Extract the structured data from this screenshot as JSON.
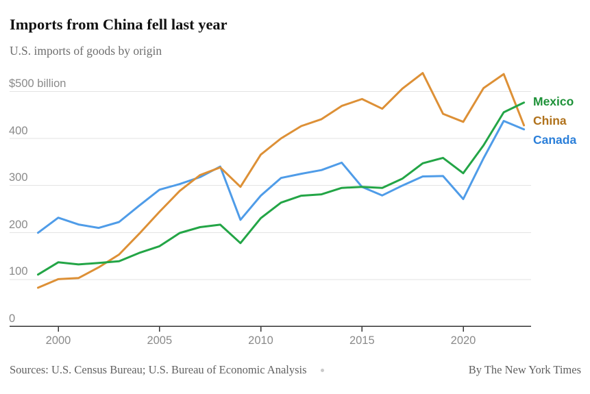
{
  "header": {
    "title": "Imports from China fell last year",
    "subtitle": "U.S. imports of goods by origin"
  },
  "chart_data": {
    "type": "line",
    "title": "Imports from China fell last year",
    "subtitle": "U.S. imports of goods by origin",
    "xlabel": "",
    "ylabel": "",
    "grid": "horizontal",
    "legend_position": "right",
    "xlim": [
      1999,
      2023
    ],
    "ylim": [
      0,
      545
    ],
    "x": [
      1999,
      2000,
      2001,
      2002,
      2003,
      2004,
      2005,
      2006,
      2007,
      2008,
      2009,
      2010,
      2011,
      2012,
      2013,
      2014,
      2015,
      2016,
      2017,
      2018,
      2019,
      2020,
      2021,
      2022,
      2023
    ],
    "series": [
      {
        "name": "Mexico",
        "line_color": "#23a546",
        "label_color": "#1d9138",
        "values": [
          109.7,
          135.9,
          131.3,
          134.6,
          138.1,
          155.9,
          170.1,
          198.3,
          210.7,
          215.9,
          176.7,
          229.7,
          262.9,
          277.6,
          280.5,
          294.2,
          296.4,
          294.2,
          314.0,
          346.5,
          358.0,
          325.4,
          384.7,
          454.9,
          475.6
        ]
      },
      {
        "name": "China",
        "line_color": "#dd9036",
        "label_color": "#b0721c",
        "values": [
          81.8,
          100.0,
          102.3,
          125.2,
          152.4,
          196.7,
          243.5,
          287.8,
          321.4,
          337.8,
          296.4,
          364.9,
          399.4,
          425.6,
          440.4,
          468.5,
          483.2,
          462.5,
          505.5,
          538.5,
          451.7,
          434.7,
          506.4,
          536.3,
          427.2
        ]
      },
      {
        "name": "Canada",
        "line_color": "#4f9ce8",
        "label_color": "#2b7fd9",
        "values": [
          198.7,
          230.8,
          216.3,
          209.1,
          221.6,
          256.4,
          290.4,
          302.4,
          317.1,
          339.5,
          226.2,
          277.6,
          315.3,
          324.2,
          332.1,
          347.8,
          296.2,
          278.1,
          299.3,
          318.5,
          319.4,
          270.4,
          357.2,
          436.6,
          418.6
        ]
      }
    ],
    "draw_order": [
      "Canada",
      "China",
      "Mexico"
    ],
    "y_ticks": [
      {
        "value": 500,
        "label": "$500 billion"
      },
      {
        "value": 400,
        "label": "400"
      },
      {
        "value": 300,
        "label": "300"
      },
      {
        "value": 200,
        "label": "200"
      },
      {
        "value": 100,
        "label": "100"
      },
      {
        "value": 0,
        "label": "0"
      }
    ],
    "x_ticks": [
      {
        "value": 2000,
        "label": "2000"
      },
      {
        "value": 2005,
        "label": "2005"
      },
      {
        "value": 2010,
        "label": "2010"
      },
      {
        "value": 2015,
        "label": "2015"
      },
      {
        "value": 2020,
        "label": "2020"
      }
    ]
  },
  "footer": {
    "sources": "Sources: U.S. Census Bureau; U.S. Bureau of Economic Analysis",
    "byline": "By The New York Times"
  },
  "colors": {
    "background": "#ffffff",
    "title": "#121212",
    "subtitle": "#6e6e6e",
    "axis_label": "#8a8a8a",
    "gridline": "#e3e3e3",
    "axis_line": "#333333",
    "footer_text": "#616161",
    "separator_dot": "#c9c9c9"
  }
}
